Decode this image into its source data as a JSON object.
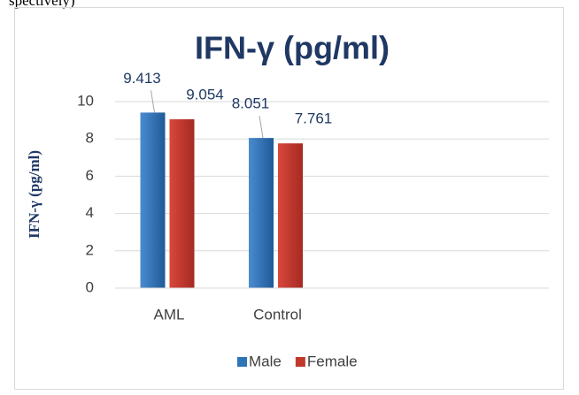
{
  "caption_fragment": "spectively)",
  "chart_data": {
    "type": "bar",
    "title": "IFN-γ (pg/ml)",
    "y_label": "IFN-γ (pg/ml)",
    "categories": [
      "AML",
      "Control",
      null,
      null
    ],
    "series": [
      {
        "name": "Male",
        "color": "#2e75b6",
        "values": [
          9.413,
          8.051,
          null,
          null
        ]
      },
      {
        "name": "Female",
        "color": "#c0392b",
        "values": [
          9.054,
          7.761,
          null,
          null
        ]
      }
    ],
    "ylim": [
      0,
      10
    ],
    "yticks": [
      0,
      2,
      4,
      6,
      8,
      10
    ],
    "grid": true,
    "legend": "bottom"
  }
}
